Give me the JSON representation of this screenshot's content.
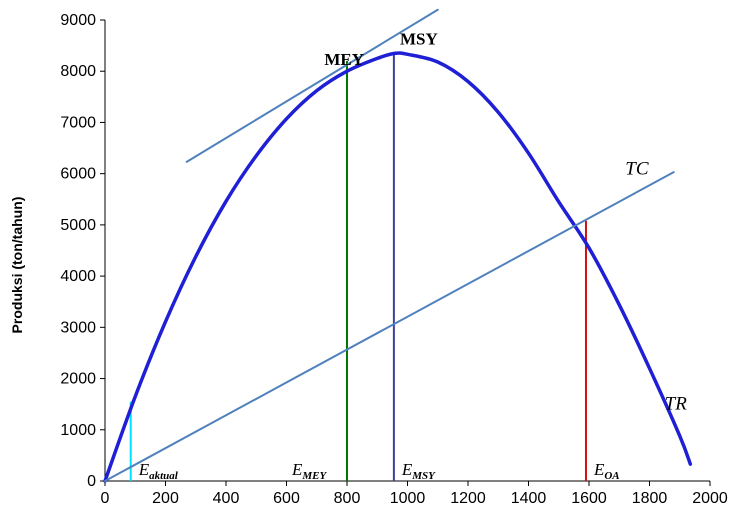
{
  "chart_data": {
    "type": "line",
    "title": "",
    "xlabel": "",
    "ylabel": "Produksi (ton/tahun)",
    "xlim": [
      0,
      2000
    ],
    "ylim": [
      0,
      9000
    ],
    "x_ticks": [
      "0",
      "200",
      "400",
      "600",
      "800",
      "1000",
      "1200",
      "1400",
      "1600",
      "1800",
      "2000"
    ],
    "y_ticks": [
      "0",
      "1000",
      "2000",
      "3000",
      "4000",
      "5000",
      "6000",
      "7000",
      "8000",
      "9000"
    ],
    "grid": false,
    "legend": "none",
    "series": [
      {
        "name": "TR",
        "color": "#1f1fd6",
        "points": [
          [
            0,
            0
          ],
          [
            100,
            1650
          ],
          [
            200,
            3110
          ],
          [
            300,
            4380
          ],
          [
            400,
            5460
          ],
          [
            500,
            6350
          ],
          [
            600,
            7070
          ],
          [
            700,
            7620
          ],
          [
            800,
            8000
          ],
          [
            900,
            8250
          ],
          [
            960,
            8350
          ],
          [
            1000,
            8330
          ],
          [
            1100,
            8180
          ],
          [
            1200,
            7800
          ],
          [
            1300,
            7200
          ],
          [
            1400,
            6400
          ],
          [
            1500,
            5450
          ],
          [
            1600,
            4550
          ],
          [
            1700,
            3440
          ],
          [
            1800,
            2200
          ],
          [
            1900,
            880
          ],
          [
            1935,
            330
          ]
        ]
      },
      {
        "name": "TC",
        "color": "#4f81bd",
        "points": [
          [
            0,
            0
          ],
          [
            1880,
            6030
          ]
        ]
      },
      {
        "name": "",
        "color": "#4f81bd",
        "points": [
          [
            270,
            6230
          ],
          [
            1100,
            9200
          ]
        ]
      }
    ],
    "vertical_lines": [
      {
        "x": 85,
        "y_top": 1550,
        "color": "#00e0ff",
        "label_main": "E",
        "label_sub": "aktual"
      },
      {
        "x": 800,
        "y_top": 8200,
        "color": "#007a00",
        "label_main": "E",
        "label_sub": "MEY"
      },
      {
        "x": 955,
        "y_top": 8350,
        "color": "#3f3f9f",
        "label_main": "E",
        "label_sub": "MSY"
      },
      {
        "x": 1590,
        "y_top": 5080,
        "color": "#d01010",
        "label_main": "E",
        "label_sub": "OA"
      }
    ],
    "annotations": [
      {
        "text": "MEY",
        "x": 725,
        "y": 8120
      },
      {
        "text": "MSY",
        "x": 975,
        "y": 8520
      },
      {
        "text": "TC",
        "x": 1720,
        "y": 5980
      },
      {
        "text": "TR",
        "x": 1850,
        "y": 1400
      }
    ]
  }
}
